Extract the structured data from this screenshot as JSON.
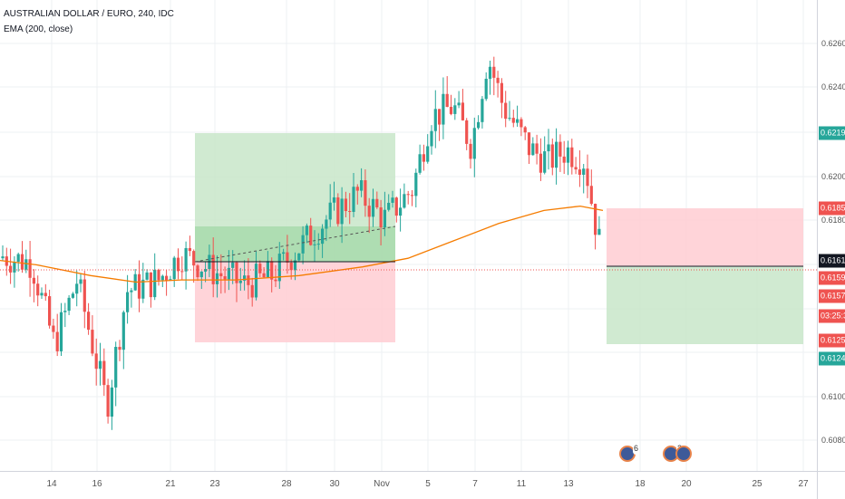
{
  "legend": {
    "symbol": "AUSTRALIAN DOLLAR / EURO, 240, IDC",
    "indicator": "EMA (200, close)"
  },
  "colors": {
    "up": "#26a69a",
    "down": "#ef5350",
    "ema": "#f57c00",
    "profit_zone": "#c8e6c9",
    "loss_zone": "#ffcdd2",
    "badge_green": "#26a69a",
    "badge_red": "#ef5350",
    "badge_black": "#131722"
  },
  "price_axis": {
    "ticks": [
      "0.6260",
      "0.6240",
      "0.6200",
      "0.6180",
      "0.6100",
      "0.6080"
    ],
    "badges": [
      {
        "label": "0.6219",
        "color": "#26a69a"
      },
      {
        "label": "0.6185",
        "color": "#ef5350"
      },
      {
        "label": "0.6161",
        "color": "#131722"
      },
      {
        "label": "0.6159",
        "color": "#ef5350"
      },
      {
        "label": "0.6157",
        "color": "#ef5350"
      },
      {
        "label": "03:25:32",
        "color": "#ef5350"
      },
      {
        "label": "0.6125",
        "color": "#ef5350"
      },
      {
        "label": "0.6124",
        "color": "#26a69a"
      }
    ]
  },
  "time_axis": {
    "ticks": [
      "14",
      "16",
      "21",
      "23",
      "28",
      "30",
      "Nov",
      "5",
      "7",
      "11",
      "13",
      "18",
      "20",
      "25",
      "27"
    ]
  },
  "events": [
    {
      "name": "event-icon",
      "count": "6"
    },
    {
      "name": "event-icon",
      "count": "2"
    },
    {
      "name": "event-icon",
      "count": ""
    }
  ],
  "chart_data": {
    "type": "candlestick",
    "symbol": "AUSTRALIAN DOLLAR / EURO",
    "interval": "240",
    "source": "IDC",
    "indicator": "EMA (200, close)",
    "y_range": [
      0.6062,
      0.6279
    ],
    "positions": [
      {
        "side": "long",
        "entry": 0.6161,
        "target": 0.6219,
        "stop": 0.6124
      },
      {
        "side": "short",
        "entry": 0.6161,
        "target": 0.6124,
        "stop": 0.6185
      }
    ]
  }
}
